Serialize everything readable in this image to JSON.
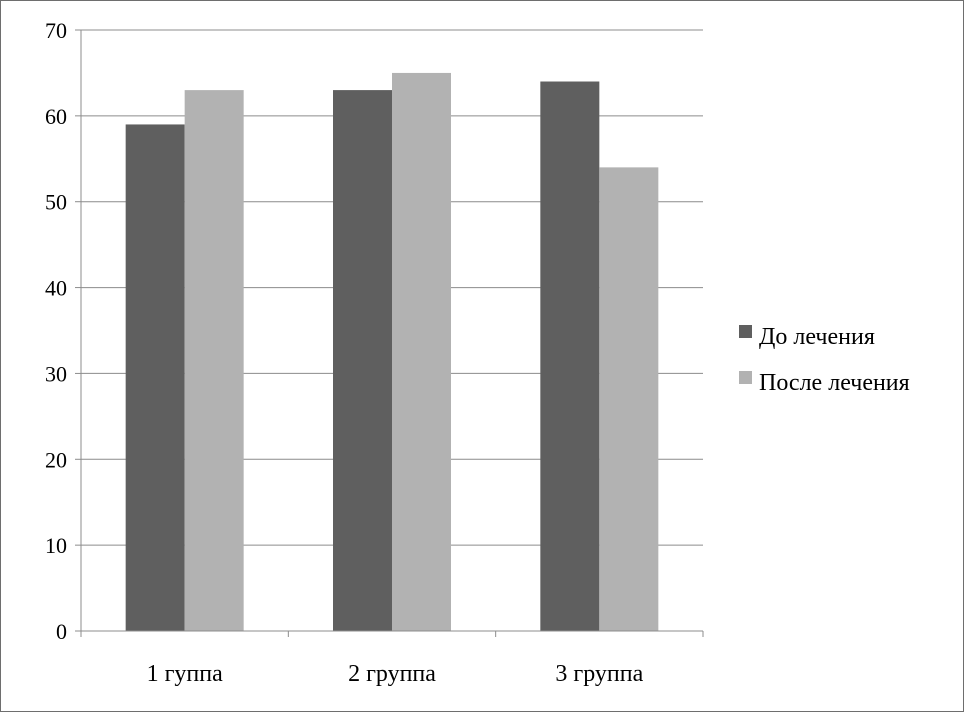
{
  "chart_data": {
    "type": "bar",
    "title": "",
    "xlabel": "",
    "ylabel": "",
    "categories": [
      "1 гуппа",
      "2 группа",
      "3 группа"
    ],
    "series": [
      {
        "name": "До лечения",
        "values": [
          59,
          63,
          64
        ],
        "color": "#5f5f5f"
      },
      {
        "name": "После лечения",
        "values": [
          63,
          65,
          54
        ],
        "color": "#b2b2b2"
      }
    ],
    "ylim": [
      0,
      70
    ],
    "yticks": [
      0,
      10,
      20,
      30,
      40,
      50,
      60,
      70
    ],
    "grid": true,
    "legend_position": "right"
  }
}
